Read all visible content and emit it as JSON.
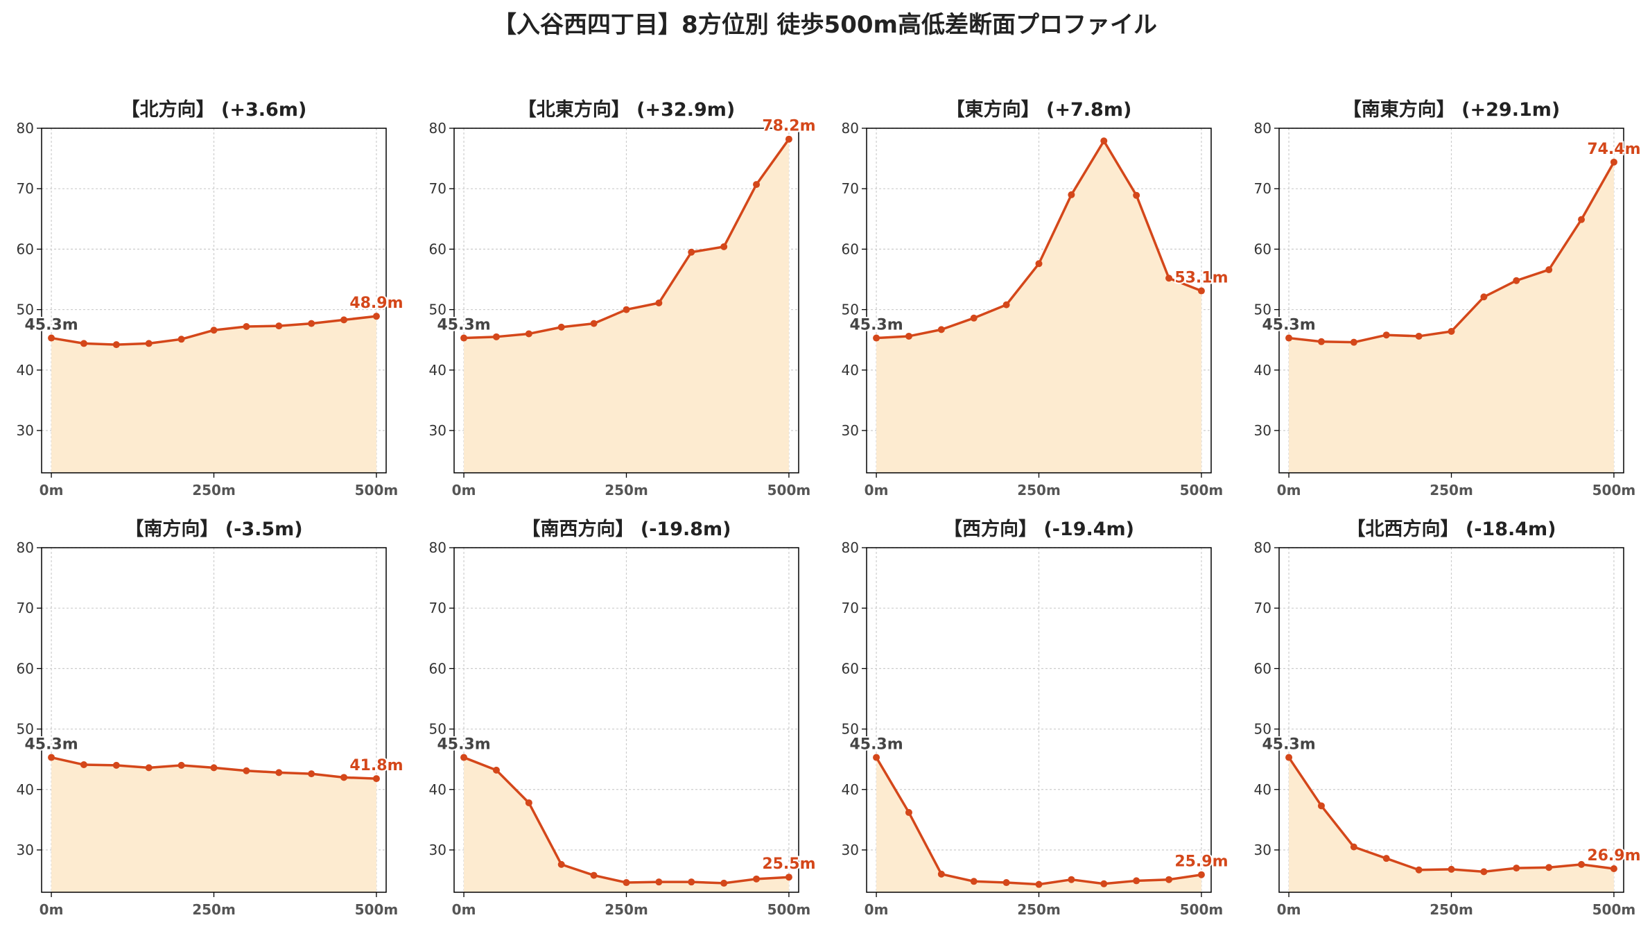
{
  "title": "【入谷西四丁目】8方位別 徒歩500m高低差断面プロファイル",
  "colors": {
    "line": "#d4471a",
    "fill": "#fdebd0",
    "grid": "#cccccc",
    "start_label": "#444444",
    "end_label": "#d4471a"
  },
  "chart_data": [
    {
      "type": "area",
      "title": "【北方向】 (+3.6m)",
      "x": [
        0,
        50,
        100,
        150,
        200,
        250,
        300,
        350,
        400,
        450,
        500
      ],
      "values": [
        45.3,
        44.4,
        44.2,
        44.4,
        45.1,
        46.6,
        47.2,
        47.3,
        47.7,
        48.3,
        48.9
      ],
      "start_label": "45.3m",
      "end_label": "48.9m",
      "xticks": [
        "0m",
        "250m",
        "500m"
      ],
      "yticks": [
        30,
        40,
        50,
        60,
        70,
        80
      ],
      "xlim": [
        -15,
        515
      ],
      "ylim": [
        23,
        80
      ],
      "grid": true
    },
    {
      "type": "area",
      "title": "【北東方向】 (+32.9m)",
      "x": [
        0,
        50,
        100,
        150,
        200,
        250,
        300,
        350,
        400,
        450,
        500
      ],
      "values": [
        45.3,
        45.5,
        46.0,
        47.1,
        47.7,
        50.0,
        51.1,
        59.5,
        60.4,
        70.7,
        78.2
      ],
      "start_label": "45.3m",
      "end_label": "78.2m",
      "xticks": [
        "0m",
        "250m",
        "500m"
      ],
      "yticks": [
        30,
        40,
        50,
        60,
        70,
        80
      ],
      "xlim": [
        -15,
        515
      ],
      "ylim": [
        23,
        80
      ],
      "grid": true
    },
    {
      "type": "area",
      "title": "【東方向】 (+7.8m)",
      "x": [
        0,
        50,
        100,
        150,
        200,
        250,
        300,
        350,
        400,
        450,
        500
      ],
      "values": [
        45.3,
        45.6,
        46.7,
        48.6,
        50.8,
        57.6,
        69.0,
        77.9,
        68.9,
        55.2,
        53.1
      ],
      "start_label": "45.3m",
      "end_label": "53.1m",
      "xticks": [
        "0m",
        "250m",
        "500m"
      ],
      "yticks": [
        30,
        40,
        50,
        60,
        70,
        80
      ],
      "xlim": [
        -15,
        515
      ],
      "ylim": [
        23,
        80
      ],
      "grid": true
    },
    {
      "type": "area",
      "title": "【南東方向】 (+29.1m)",
      "x": [
        0,
        50,
        100,
        150,
        200,
        250,
        300,
        350,
        400,
        450,
        500
      ],
      "values": [
        45.3,
        44.7,
        44.6,
        45.8,
        45.6,
        46.4,
        52.1,
        54.8,
        56.6,
        64.9,
        74.4
      ],
      "start_label": "45.3m",
      "end_label": "74.4m",
      "xticks": [
        "0m",
        "250m",
        "500m"
      ],
      "yticks": [
        30,
        40,
        50,
        60,
        70,
        80
      ],
      "xlim": [
        -15,
        515
      ],
      "ylim": [
        23,
        80
      ],
      "grid": true
    },
    {
      "type": "area",
      "title": "【南方向】 (-3.5m)",
      "x": [
        0,
        50,
        100,
        150,
        200,
        250,
        300,
        350,
        400,
        450,
        500
      ],
      "values": [
        45.3,
        44.1,
        44.0,
        43.6,
        44.0,
        43.6,
        43.1,
        42.8,
        42.6,
        42.0,
        41.8
      ],
      "start_label": "45.3m",
      "end_label": "41.8m",
      "xticks": [
        "0m",
        "250m",
        "500m"
      ],
      "yticks": [
        30,
        40,
        50,
        60,
        70,
        80
      ],
      "xlim": [
        -15,
        515
      ],
      "ylim": [
        23,
        80
      ],
      "grid": true
    },
    {
      "type": "area",
      "title": "【南西方向】 (-19.8m)",
      "x": [
        0,
        50,
        100,
        150,
        200,
        250,
        300,
        350,
        400,
        450,
        500
      ],
      "values": [
        45.3,
        43.2,
        37.8,
        27.6,
        25.8,
        24.6,
        24.7,
        24.7,
        24.5,
        25.2,
        25.5
      ],
      "start_label": "45.3m",
      "end_label": "25.5m",
      "xticks": [
        "0m",
        "250m",
        "500m"
      ],
      "yticks": [
        30,
        40,
        50,
        60,
        70,
        80
      ],
      "xlim": [
        -15,
        515
      ],
      "ylim": [
        23,
        80
      ],
      "grid": true
    },
    {
      "type": "area",
      "title": "【西方向】 (-19.4m)",
      "x": [
        0,
        50,
        100,
        150,
        200,
        250,
        300,
        350,
        400,
        450,
        500
      ],
      "values": [
        45.3,
        36.2,
        26.0,
        24.8,
        24.6,
        24.3,
        25.1,
        24.4,
        24.9,
        25.1,
        25.9
      ],
      "start_label": "45.3m",
      "end_label": "25.9m",
      "xticks": [
        "0m",
        "250m",
        "500m"
      ],
      "yticks": [
        30,
        40,
        50,
        60,
        70,
        80
      ],
      "xlim": [
        -15,
        515
      ],
      "ylim": [
        23,
        80
      ],
      "grid": true
    },
    {
      "type": "area",
      "title": "【北西方向】 (-18.4m)",
      "x": [
        0,
        50,
        100,
        150,
        200,
        250,
        300,
        350,
        400,
        450,
        500
      ],
      "values": [
        45.3,
        37.3,
        30.5,
        28.6,
        26.7,
        26.8,
        26.4,
        27.0,
        27.1,
        27.6,
        26.9
      ],
      "start_label": "45.3m",
      "end_label": "26.9m",
      "xticks": [
        "0m",
        "250m",
        "500m"
      ],
      "yticks": [
        30,
        40,
        50,
        60,
        70,
        80
      ],
      "xlim": [
        -15,
        515
      ],
      "ylim": [
        23,
        80
      ],
      "grid": true
    }
  ]
}
